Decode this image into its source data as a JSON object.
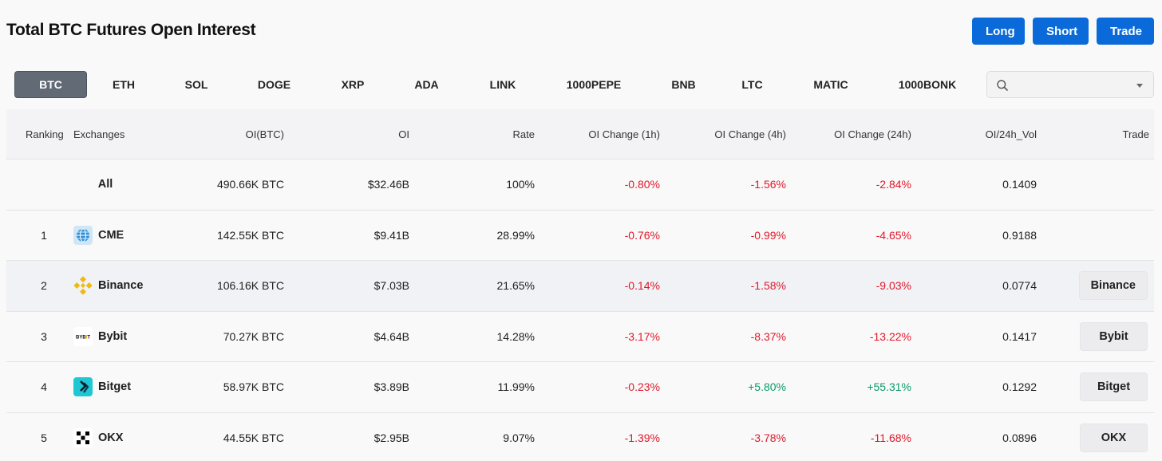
{
  "page": {
    "title": "Total BTC Futures Open Interest",
    "actions": {
      "long": "Long",
      "short": "Short",
      "trade": "Trade"
    }
  },
  "colors": {
    "primary": "#0b6ad9",
    "negative": "#e0182b",
    "positive": "#0a9a6c",
    "active_tab": "#616a75"
  },
  "coins": [
    "BTC",
    "ETH",
    "SOL",
    "DOGE",
    "XRP",
    "ADA",
    "LINK",
    "1000PEPE",
    "BNB",
    "LTC",
    "MATIC",
    "1000BONK"
  ],
  "active_coin": "BTC",
  "search": {
    "value": "",
    "placeholder": "",
    "icon": "search-icon"
  },
  "table": {
    "headers": {
      "ranking": "Ranking",
      "exchanges": "Exchanges",
      "oi_btc": "OI(BTC)",
      "oi": "OI",
      "rate": "Rate",
      "change_1h": "OI Change (1h)",
      "change_4h": "OI Change (4h)",
      "change_24h": "OI Change (24h)",
      "oi_vol": "OI/24h_Vol",
      "trade": "Trade"
    },
    "total": {
      "label": "All",
      "oi_btc": "490.66K BTC",
      "oi": "$32.46B",
      "rate": "100%",
      "change_1h": "-0.80%",
      "change_4h": "-1.56%",
      "change_24h": "-2.84%",
      "oi_vol": "0.1409"
    },
    "rows": [
      {
        "rank": "1",
        "exchange": "CME",
        "logo": "cme-logo-icon",
        "oi_btc": "142.55K BTC",
        "oi": "$9.41B",
        "rate": "28.99%",
        "change_1h": "-0.76%",
        "change_4h": "-0.99%",
        "change_24h": "-4.65%",
        "oi_vol": "0.9188",
        "trade": ""
      },
      {
        "rank": "2",
        "exchange": "Binance",
        "logo": "binance-logo-icon",
        "oi_btc": "106.16K BTC",
        "oi": "$7.03B",
        "rate": "21.65%",
        "change_1h": "-0.14%",
        "change_4h": "-1.58%",
        "change_24h": "-9.03%",
        "oi_vol": "0.0774",
        "trade": "Binance"
      },
      {
        "rank": "3",
        "exchange": "Bybit",
        "logo": "bybit-logo-icon",
        "oi_btc": "70.27K BTC",
        "oi": "$4.64B",
        "rate": "14.28%",
        "change_1h": "-3.17%",
        "change_4h": "-8.37%",
        "change_24h": "-13.22%",
        "oi_vol": "0.1417",
        "trade": "Bybit"
      },
      {
        "rank": "4",
        "exchange": "Bitget",
        "logo": "bitget-logo-icon",
        "oi_btc": "58.97K BTC",
        "oi": "$3.89B",
        "rate": "11.99%",
        "change_1h": "-0.23%",
        "change_4h": "+5.80%",
        "change_24h": "+55.31%",
        "oi_vol": "0.1292",
        "trade": "Bitget"
      },
      {
        "rank": "5",
        "exchange": "OKX",
        "logo": "okx-logo-icon",
        "oi_btc": "44.55K BTC",
        "oi": "$2.95B",
        "rate": "9.07%",
        "change_1h": "-1.39%",
        "change_4h": "-3.78%",
        "change_24h": "-11.68%",
        "oi_vol": "0.0896",
        "trade": "OKX"
      }
    ]
  }
}
